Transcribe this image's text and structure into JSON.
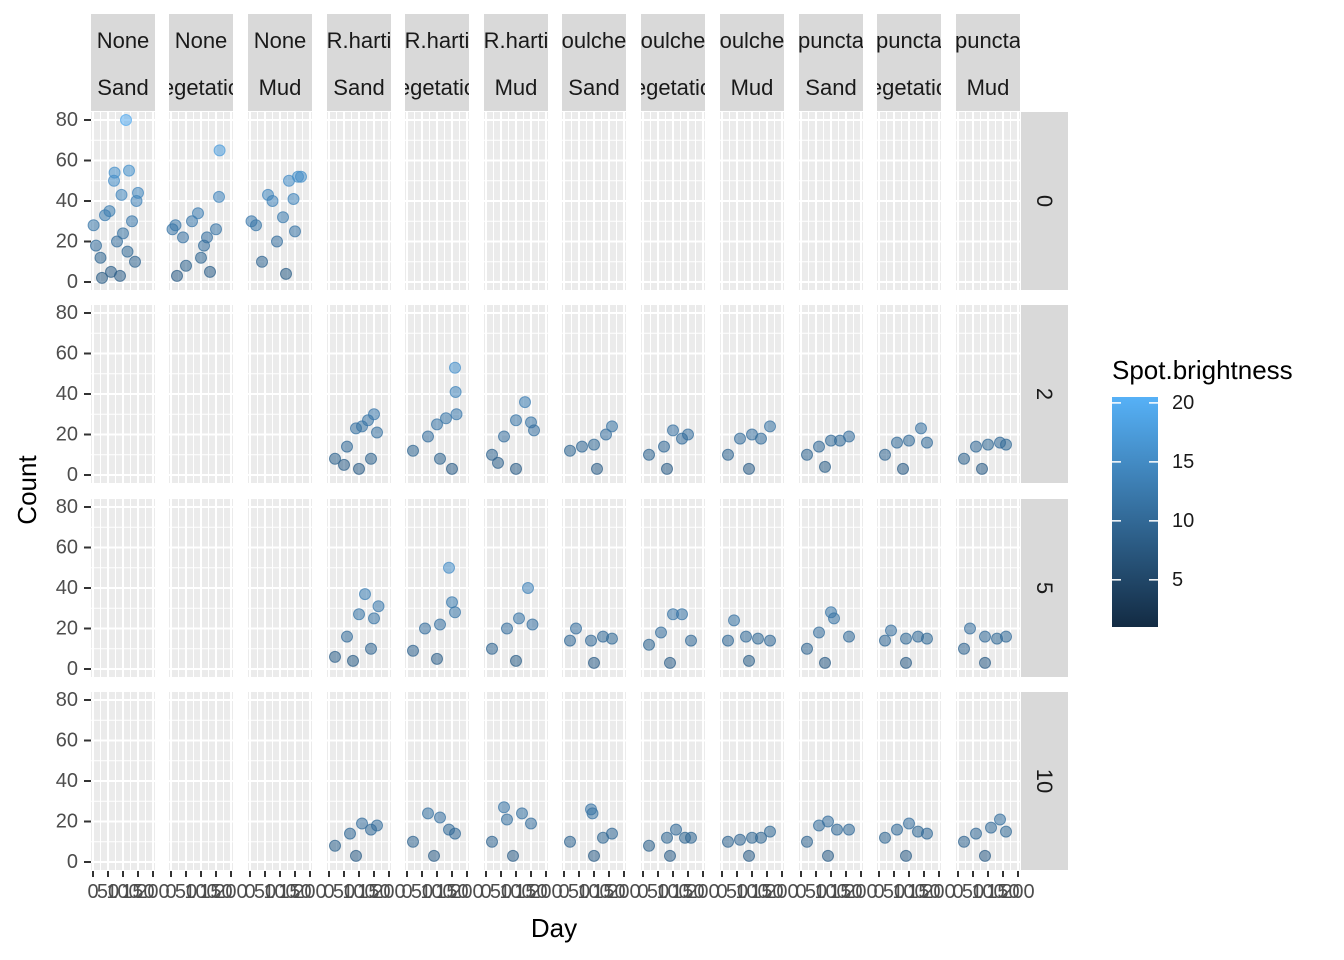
{
  "chart_data": {
    "type": "scatter",
    "layout": "facet_grid",
    "xlabel": "Day",
    "ylabel": "Count",
    "ylim": [
      0,
      80
    ],
    "y_ticks": [
      "0",
      "20",
      "40",
      "60",
      "80"
    ],
    "xlim": [
      0,
      200
    ],
    "x_ticks": [
      "0",
      "50",
      "100",
      "150",
      "200"
    ],
    "columns": [
      {
        "line1": "None",
        "line2": "Sand"
      },
      {
        "line1": "None",
        "line2": "egetatio"
      },
      {
        "line1": "None",
        "line2": "Mud"
      },
      {
        "line1": "R.harti",
        "line2": "Sand"
      },
      {
        "line1": "R.harti",
        "line2": "egetatio"
      },
      {
        "line1": "R.harti",
        "line2": "Mud"
      },
      {
        "line1": "oulche",
        "line2": "Sand"
      },
      {
        "line1": "oulche",
        "line2": "egetatio"
      },
      {
        "line1": "oulche",
        "line2": "Mud"
      },
      {
        "line1": "puncta",
        "line2": "Sand"
      },
      {
        "line1": "puncta",
        "line2": "egetatio"
      },
      {
        "line1": "puncta",
        "line2": "Mud"
      }
    ],
    "rows": [
      "0",
      "2",
      "5",
      "10"
    ],
    "color_legend": {
      "title": "Spot.brightness",
      "ticks": [
        "5",
        "10",
        "15",
        "20"
      ],
      "range": [
        1,
        20.5
      ],
      "low_color": "#132b43",
      "high_color": "#56b1f7"
    },
    "grid": true,
    "legend_position": "right",
    "panels": [
      {
        "row": "0",
        "col": 1,
        "points": [
          [
            2,
            28
          ],
          [
            10,
            18
          ],
          [
            25,
            12
          ],
          [
            40,
            33
          ],
          [
            55,
            35
          ],
          [
            70,
            50
          ],
          [
            72,
            54
          ],
          [
            95,
            43
          ],
          [
            110,
            80
          ],
          [
            120,
            55
          ],
          [
            130,
            30
          ],
          [
            145,
            40
          ],
          [
            150,
            44
          ],
          [
            100,
            24
          ],
          [
            80,
            20
          ],
          [
            60,
            5
          ],
          [
            140,
            10
          ],
          [
            30,
            2
          ],
          [
            90,
            3
          ],
          [
            115,
            15
          ]
        ]
      },
      {
        "row": "0",
        "col": 2,
        "points": [
          [
            5,
            26
          ],
          [
            15,
            28
          ],
          [
            40,
            22
          ],
          [
            70,
            30
          ],
          [
            90,
            34
          ],
          [
            120,
            22
          ],
          [
            150,
            26
          ],
          [
            160,
            42
          ],
          [
            162,
            65
          ],
          [
            110,
            18
          ],
          [
            50,
            8
          ],
          [
            130,
            5
          ],
          [
            100,
            12
          ],
          [
            20,
            3
          ]
        ]
      },
      {
        "row": "0",
        "col": 3,
        "points": [
          [
            5,
            30
          ],
          [
            20,
            28
          ],
          [
            60,
            43
          ],
          [
            75,
            40
          ],
          [
            110,
            32
          ],
          [
            130,
            50
          ],
          [
            145,
            41
          ],
          [
            160,
            52
          ],
          [
            170,
            52
          ],
          [
            90,
            20
          ],
          [
            40,
            10
          ],
          [
            120,
            4
          ],
          [
            150,
            25
          ]
        ]
      },
      {
        "row": "2",
        "col": 4,
        "points": [
          [
            20,
            8
          ],
          [
            60,
            14
          ],
          [
            90,
            23
          ],
          [
            110,
            24
          ],
          [
            130,
            27
          ],
          [
            150,
            30
          ],
          [
            160,
            21
          ],
          [
            140,
            8
          ],
          [
            100,
            3
          ],
          [
            50,
            5
          ]
        ]
      },
      {
        "row": "2",
        "col": 5,
        "points": [
          [
            20,
            12
          ],
          [
            70,
            19
          ],
          [
            100,
            25
          ],
          [
            130,
            28
          ],
          [
            160,
            53
          ],
          [
            162,
            41
          ],
          [
            165,
            30
          ],
          [
            150,
            3
          ],
          [
            110,
            8
          ]
        ]
      },
      {
        "row": "2",
        "col": 6,
        "points": [
          [
            20,
            10
          ],
          [
            60,
            19
          ],
          [
            100,
            27
          ],
          [
            130,
            36
          ],
          [
            150,
            26
          ],
          [
            160,
            22
          ],
          [
            100,
            3
          ],
          [
            40,
            6
          ]
        ]
      },
      {
        "row": "2",
        "col": 7,
        "points": [
          [
            20,
            12
          ],
          [
            60,
            14
          ],
          [
            100,
            15
          ],
          [
            140,
            20
          ],
          [
            160,
            24
          ],
          [
            110,
            3
          ]
        ]
      },
      {
        "row": "2",
        "col": 8,
        "points": [
          [
            20,
            10
          ],
          [
            70,
            14
          ],
          [
            100,
            22
          ],
          [
            130,
            18
          ],
          [
            150,
            20
          ],
          [
            80,
            3
          ]
        ]
      },
      {
        "row": "2",
        "col": 9,
        "points": [
          [
            20,
            10
          ],
          [
            60,
            18
          ],
          [
            100,
            20
          ],
          [
            130,
            18
          ],
          [
            160,
            24
          ],
          [
            90,
            3
          ]
        ]
      },
      {
        "row": "2",
        "col": 10,
        "points": [
          [
            20,
            10
          ],
          [
            60,
            14
          ],
          [
            100,
            17
          ],
          [
            130,
            17
          ],
          [
            160,
            19
          ],
          [
            80,
            4
          ]
        ]
      },
      {
        "row": "2",
        "col": 11,
        "points": [
          [
            20,
            10
          ],
          [
            60,
            16
          ],
          [
            100,
            17
          ],
          [
            140,
            23
          ],
          [
            160,
            16
          ],
          [
            80,
            3
          ]
        ]
      },
      {
        "row": "2",
        "col": 12,
        "points": [
          [
            20,
            8
          ],
          [
            60,
            14
          ],
          [
            100,
            15
          ],
          [
            140,
            16
          ],
          [
            160,
            15
          ],
          [
            80,
            3
          ]
        ]
      },
      {
        "row": "5",
        "col": 4,
        "points": [
          [
            20,
            6
          ],
          [
            60,
            16
          ],
          [
            100,
            27
          ],
          [
            120,
            37
          ],
          [
            150,
            25
          ],
          [
            165,
            31
          ],
          [
            140,
            10
          ],
          [
            80,
            4
          ]
        ]
      },
      {
        "row": "5",
        "col": 5,
        "points": [
          [
            20,
            9
          ],
          [
            60,
            20
          ],
          [
            110,
            22
          ],
          [
            140,
            50
          ],
          [
            150,
            33
          ],
          [
            160,
            28
          ],
          [
            100,
            5
          ]
        ]
      },
      {
        "row": "5",
        "col": 6,
        "points": [
          [
            20,
            10
          ],
          [
            70,
            20
          ],
          [
            110,
            25
          ],
          [
            140,
            40
          ],
          [
            155,
            22
          ],
          [
            100,
            4
          ]
        ]
      },
      {
        "row": "5",
        "col": 7,
        "points": [
          [
            20,
            14
          ],
          [
            40,
            20
          ],
          [
            90,
            14
          ],
          [
            130,
            16
          ],
          [
            160,
            15
          ],
          [
            100,
            3
          ]
        ]
      },
      {
        "row": "5",
        "col": 8,
        "points": [
          [
            20,
            12
          ],
          [
            60,
            18
          ],
          [
            100,
            27
          ],
          [
            130,
            27
          ],
          [
            160,
            14
          ],
          [
            90,
            3
          ]
        ]
      },
      {
        "row": "5",
        "col": 9,
        "points": [
          [
            20,
            14
          ],
          [
            40,
            24
          ],
          [
            80,
            16
          ],
          [
            120,
            15
          ],
          [
            160,
            14
          ],
          [
            90,
            4
          ]
        ]
      },
      {
        "row": "5",
        "col": 10,
        "points": [
          [
            20,
            10
          ],
          [
            60,
            18
          ],
          [
            100,
            28
          ],
          [
            110,
            25
          ],
          [
            160,
            16
          ],
          [
            80,
            3
          ]
        ]
      },
      {
        "row": "5",
        "col": 11,
        "points": [
          [
            20,
            14
          ],
          [
            40,
            19
          ],
          [
            90,
            15
          ],
          [
            130,
            16
          ],
          [
            160,
            15
          ],
          [
            90,
            3
          ]
        ]
      },
      {
        "row": "5",
        "col": 12,
        "points": [
          [
            20,
            10
          ],
          [
            40,
            20
          ],
          [
            90,
            16
          ],
          [
            130,
            15
          ],
          [
            160,
            16
          ],
          [
            90,
            3
          ]
        ]
      },
      {
        "row": "10",
        "col": 4,
        "points": [
          [
            20,
            8
          ],
          [
            70,
            14
          ],
          [
            110,
            19
          ],
          [
            140,
            16
          ],
          [
            160,
            18
          ],
          [
            90,
            3
          ]
        ]
      },
      {
        "row": "10",
        "col": 5,
        "points": [
          [
            20,
            10
          ],
          [
            70,
            24
          ],
          [
            110,
            22
          ],
          [
            140,
            16
          ],
          [
            160,
            14
          ],
          [
            90,
            3
          ]
        ]
      },
      {
        "row": "10",
        "col": 6,
        "points": [
          [
            20,
            10
          ],
          [
            60,
            27
          ],
          [
            70,
            21
          ],
          [
            120,
            24
          ],
          [
            150,
            19
          ],
          [
            90,
            3
          ]
        ]
      },
      {
        "row": "10",
        "col": 7,
        "points": [
          [
            20,
            10
          ],
          [
            90,
            26
          ],
          [
            95,
            24
          ],
          [
            130,
            12
          ],
          [
            160,
            14
          ],
          [
            100,
            3
          ]
        ]
      },
      {
        "row": "10",
        "col": 8,
        "points": [
          [
            20,
            8
          ],
          [
            80,
            12
          ],
          [
            110,
            16
          ],
          [
            140,
            12
          ],
          [
            160,
            12
          ],
          [
            90,
            3
          ]
        ]
      },
      {
        "row": "10",
        "col": 9,
        "points": [
          [
            20,
            10
          ],
          [
            60,
            11
          ],
          [
            100,
            12
          ],
          [
            130,
            12
          ],
          [
            160,
            15
          ],
          [
            90,
            3
          ]
        ]
      },
      {
        "row": "10",
        "col": 10,
        "points": [
          [
            20,
            10
          ],
          [
            60,
            18
          ],
          [
            90,
            20
          ],
          [
            120,
            16
          ],
          [
            160,
            16
          ],
          [
            90,
            3
          ]
        ]
      },
      {
        "row": "10",
        "col": 11,
        "points": [
          [
            20,
            12
          ],
          [
            60,
            16
          ],
          [
            100,
            19
          ],
          [
            130,
            15
          ],
          [
            160,
            14
          ],
          [
            90,
            3
          ]
        ]
      },
      {
        "row": "10",
        "col": 12,
        "points": [
          [
            20,
            10
          ],
          [
            60,
            14
          ],
          [
            110,
            17
          ],
          [
            140,
            21
          ],
          [
            160,
            15
          ],
          [
            90,
            3
          ]
        ]
      }
    ]
  }
}
